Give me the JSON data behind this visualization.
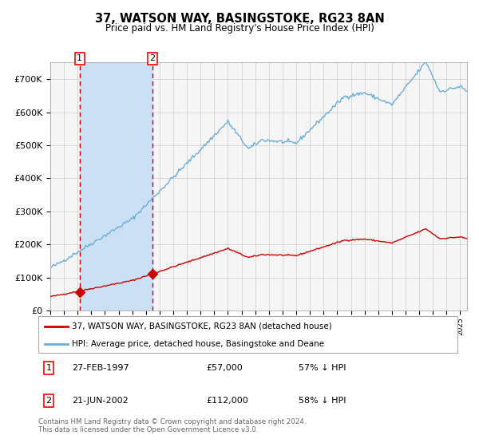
{
  "title": "37, WATSON WAY, BASINGSTOKE, RG23 8AN",
  "subtitle": "Price paid vs. HM Land Registry's House Price Index (HPI)",
  "legend_line1": "37, WATSON WAY, BASINGSTOKE, RG23 8AN (detached house)",
  "legend_line2": "HPI: Average price, detached house, Basingstoke and Deane",
  "footer": "Contains HM Land Registry data © Crown copyright and database right 2024.\nThis data is licensed under the Open Government Licence v3.0.",
  "sale1_date": 1997.15,
  "sale1_price": 57000,
  "sale1_label": "27-FEB-1997",
  "sale1_price_label": "£57,000",
  "sale1_hpi": "57% ↓ HPI",
  "sale2_date": 2002.47,
  "sale2_price": 112000,
  "sale2_label": "21-JUN-2002",
  "sale2_price_label": "£112,000",
  "sale2_hpi": "58% ↓ HPI",
  "hpi_color": "#6baed6",
  "sale_color": "#cc0000",
  "background_color": "#ffffff",
  "plot_bg_color": "#f5f5f5",
  "shade_color": "#cce0f5",
  "grid_color": "#cccccc",
  "ylim": [
    0,
    750000
  ],
  "xlim_start": 1995.0,
  "xlim_end": 2025.5
}
